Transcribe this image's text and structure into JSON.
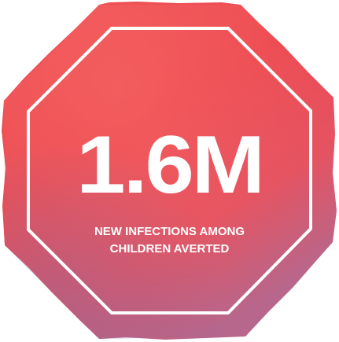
{
  "stat": {
    "value": "1.6M",
    "caption_line1": "NEW INFECTIONS AMONG",
    "caption_line2": "CHILDREN AVERTED"
  },
  "sign": {
    "shape": "octagon-stop-sign",
    "fill_color": "#ee4d4f",
    "fill_color_dark": "#c85a76",
    "border_color": "#ffffff",
    "text_color": "#ffffff"
  }
}
